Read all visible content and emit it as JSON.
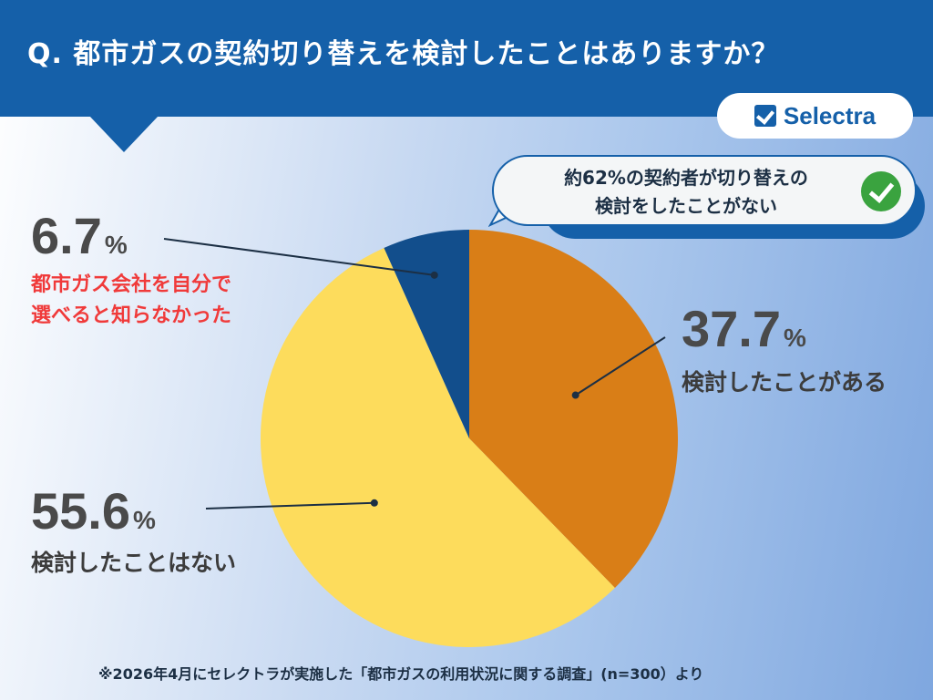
{
  "title": "Q. 都市ガスの契約切り替えを検討したことはありますか？",
  "logo": "Selectra",
  "callout": {
    "line1": "約62%の契約者が切り替えの",
    "line2": "検討をしたことがない",
    "icon": "check-circle-icon"
  },
  "footer": "※2026年4月にセレクトラが実施した「都市ガスの利用状況に関する調査」(n=300）より",
  "chart_data": {
    "type": "pie",
    "categories": [
      "検討したことがある",
      "検討したことはない",
      "都市ガス会社を自分で選べると知らなかった"
    ],
    "values": [
      37.7,
      55.6,
      6.7
    ],
    "value_labels": [
      "37.7",
      "55.6",
      "6.7"
    ],
    "percent_sign": "%",
    "colors": [
      "#d97e17",
      "#fddc5c",
      "#124e8c"
    ],
    "start": "top, clockwise"
  },
  "labels": {
    "navy_line1": "都市ガス会社を自分で",
    "navy_line2": "選べると知らなかった"
  }
}
